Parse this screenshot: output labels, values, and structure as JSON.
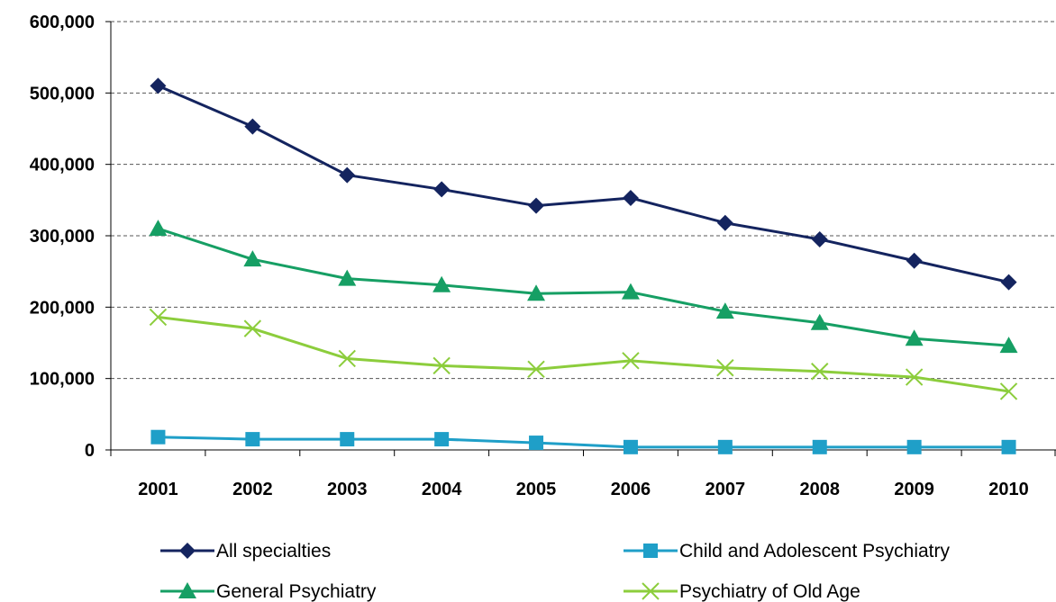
{
  "chart_data": {
    "type": "line",
    "title": "",
    "xlabel": "",
    "ylabel": "",
    "categories": [
      "2001",
      "2002",
      "2003",
      "2004",
      "2005",
      "2006",
      "2007",
      "2008",
      "2009",
      "2010"
    ],
    "ylim": [
      0,
      600000
    ],
    "yticks": [
      0,
      100000,
      200000,
      300000,
      400000,
      500000,
      600000
    ],
    "ytick_labels": [
      "0",
      "100,000",
      "200,000",
      "300,000",
      "400,000",
      "500,000",
      "600,000"
    ],
    "grid": "horizontal dashed",
    "legend_position": "bottom",
    "series": [
      {
        "name": "All specialties",
        "color": "#14245f",
        "marker": "diamond",
        "values": [
          510000,
          453000,
          385000,
          365000,
          342000,
          353000,
          318000,
          295000,
          265000,
          235000
        ]
      },
      {
        "name": "Child and Adolescent Psychiatry",
        "color": "#1f9fc8",
        "marker": "square",
        "values": [
          18000,
          15000,
          15000,
          15000,
          10000,
          4000,
          4000,
          4000,
          4000,
          4000
        ]
      },
      {
        "name": "General Psychiatry",
        "color": "#169f64",
        "marker": "triangle",
        "values": [
          310000,
          267000,
          240000,
          231000,
          219000,
          221000,
          194000,
          178000,
          156000,
          146000
        ]
      },
      {
        "name": "Psychiatry of Old Age",
        "color": "#8ccd3c",
        "marker": "x",
        "values": [
          186000,
          170000,
          128000,
          118000,
          113000,
          125000,
          115000,
          110000,
          102000,
          82000
        ]
      }
    ]
  }
}
